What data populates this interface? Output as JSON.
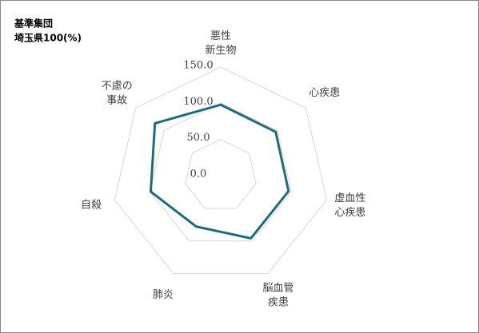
{
  "chart_data": {
    "type": "radar",
    "title": [
      "基準集団",
      "埼玉県100(%)"
    ],
    "categories": [
      "悪性\n新生物",
      "心疾患",
      "虚血性\n心疾患",
      "脳血管\n疾患",
      "肺炎",
      "自殺",
      "不慮の\n事故"
    ],
    "series": [
      {
        "name": "埼玉県",
        "color": "#1f6b7a",
        "values": [
          98,
          97,
          96,
          96,
          78,
          99,
          116
        ]
      }
    ],
    "ylim": [
      0,
      150
    ],
    "yticks": [
      {
        "value": 0,
        "label": "0.0"
      },
      {
        "value": 50,
        "label": "50.0"
      },
      {
        "value": 100,
        "label": "100.0"
      },
      {
        "value": 150,
        "label": "150.0"
      }
    ],
    "grid": true
  }
}
